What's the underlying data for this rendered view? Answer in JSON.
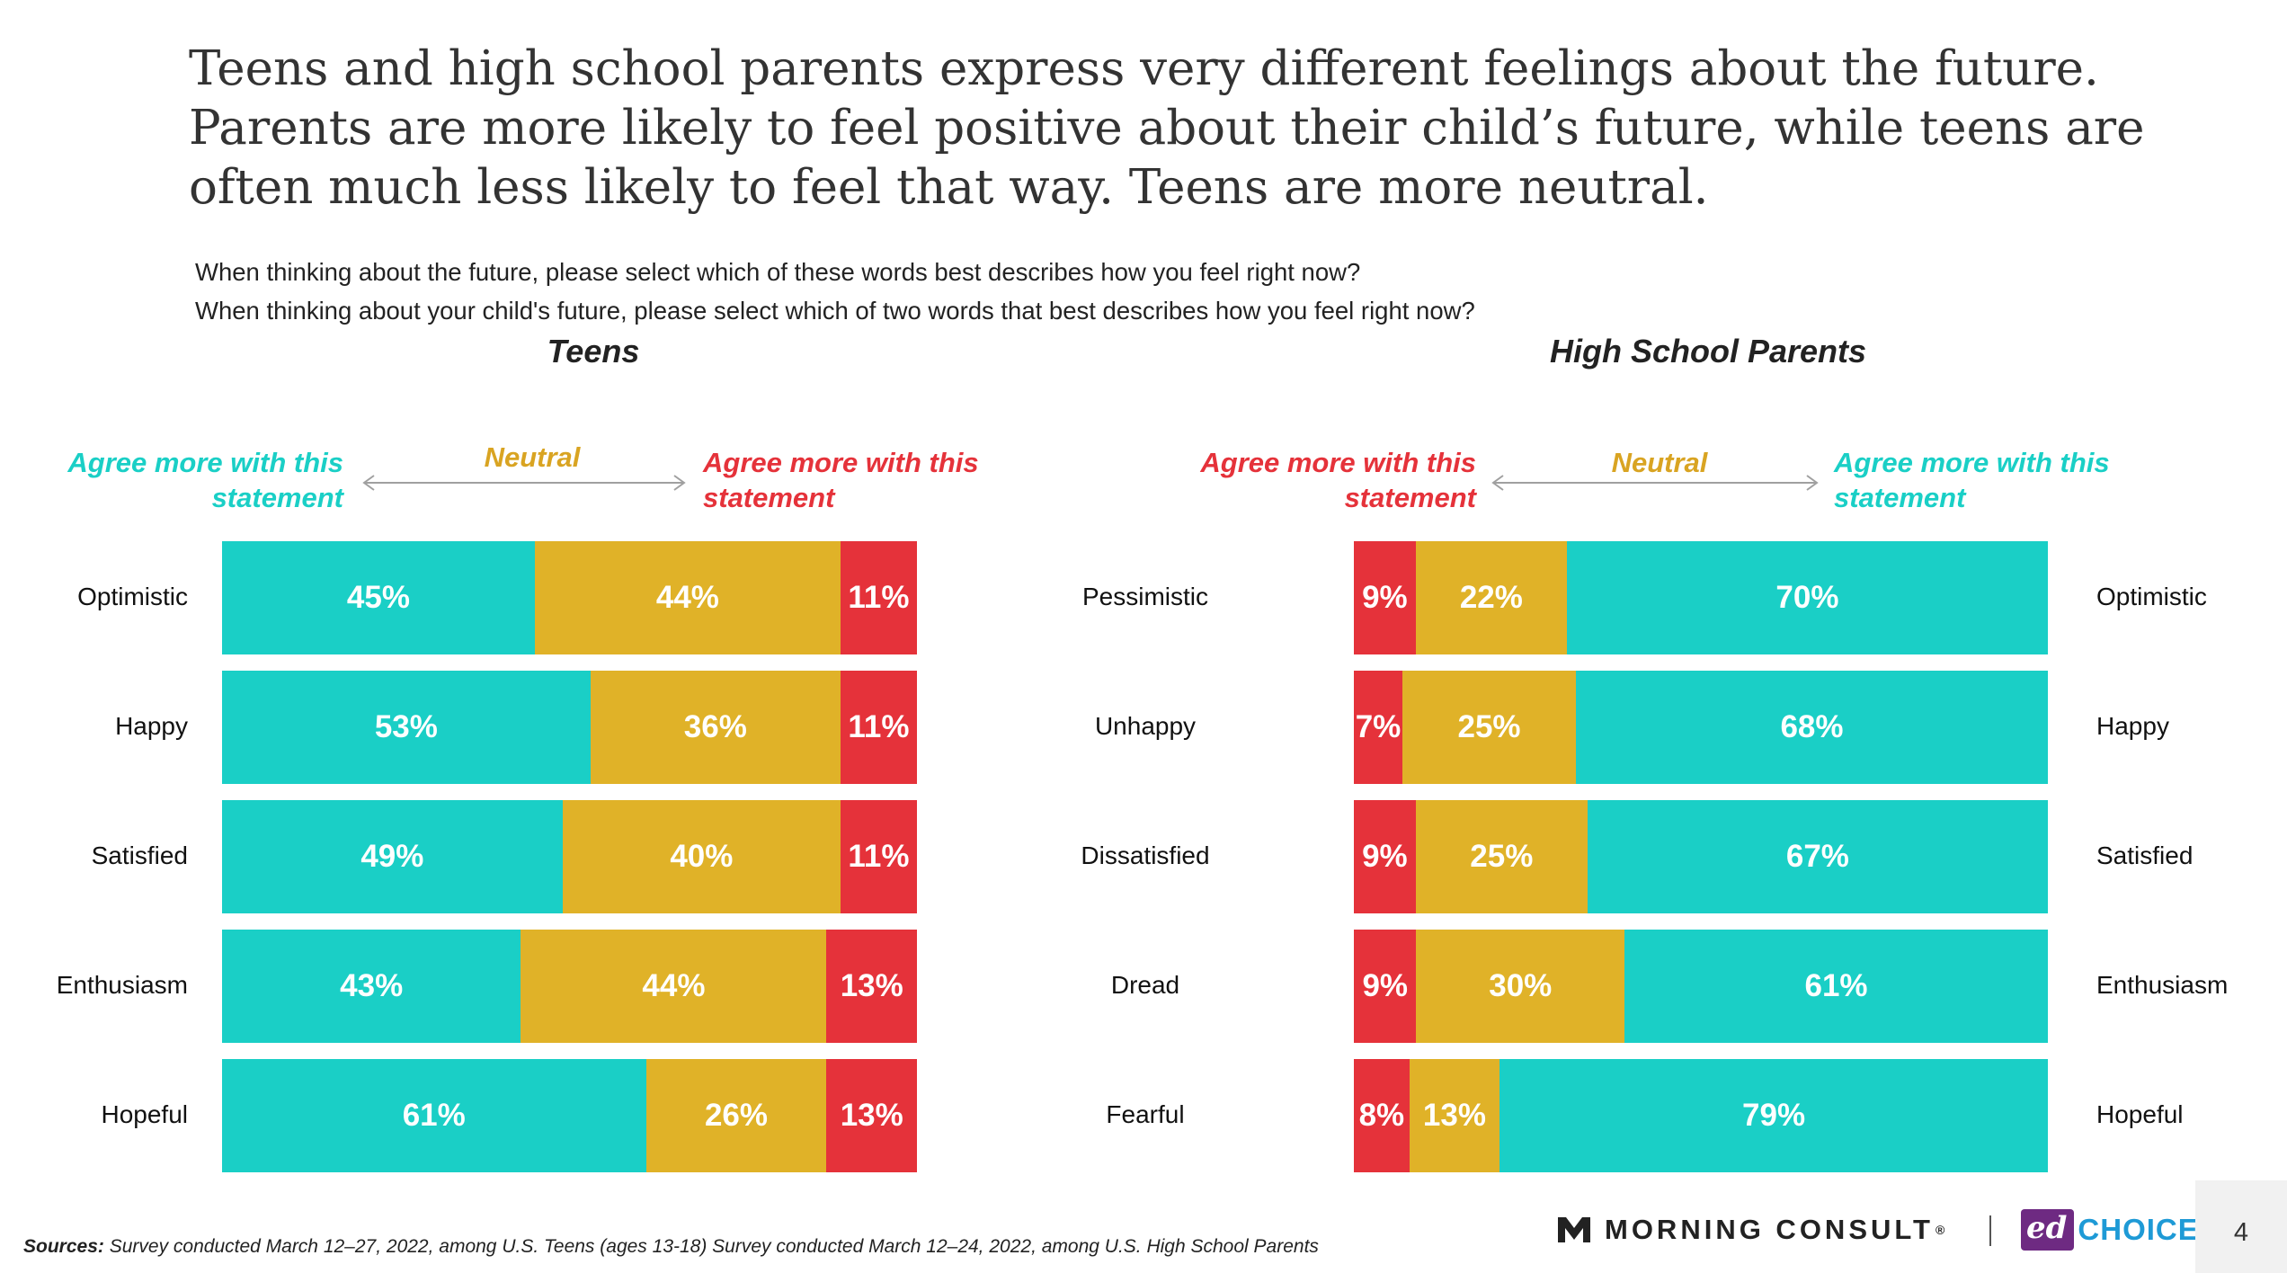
{
  "title": {
    "line1": "Teens and high school parents express very different feelings about the future.",
    "line2": "Parents are more likely to feel positive about their child’s future, while teens are",
    "line3": "often much less likely to feel that way. Teens are more neutral."
  },
  "questions": {
    "q1": "When thinking about the future, please select which of these words best describes how you feel right now?",
    "q2": "When thinking about your child's future, please select which of two words that best describes how you feel right now?"
  },
  "colors": {
    "teal": "#1ACFC6",
    "gold": "#E0B228",
    "red": "#E5323A"
  },
  "teens": {
    "panel_title": "Teens",
    "header_left_line1": "Agree more with this",
    "header_left_line2": "statement",
    "header_neutral": "Neutral",
    "header_right_line1": "Agree more with this",
    "header_right_line2": "statement"
  },
  "parents": {
    "panel_title": "High School Parents",
    "header_left_line1": "Agree more with this",
    "header_left_line2": "statement",
    "header_neutral": "Neutral",
    "header_right_line1": "Agree more with this",
    "header_right_line2": "statement"
  },
  "chart_data": [
    {
      "type": "bar",
      "stacked": true,
      "orientation": "horizontal",
      "title": "Teens",
      "categories": [
        "Optimistic",
        "Happy",
        "Satisfied",
        "Enthusiasm",
        "Hopeful"
      ],
      "series": [
        {
          "color": "#1ACFC6",
          "values": [
            45,
            53,
            49,
            43,
            61
          ],
          "labels": [
            "45%",
            "53%",
            "49%",
            "43%",
            "61%"
          ]
        },
        {
          "name": "Neutral",
          "color": "#E0B228",
          "values": [
            44,
            36,
            40,
            44,
            26
          ],
          "labels": [
            "44%",
            "36%",
            "40%",
            "44%",
            "26%"
          ]
        },
        {
          "color": "#E5323A",
          "values": [
            11,
            11,
            11,
            13,
            13
          ],
          "labels": [
            "11%",
            "11%",
            "11%",
            "13%",
            "13%"
          ]
        }
      ]
    },
    {
      "type": "bar",
      "stacked": true,
      "orientation": "horizontal",
      "title": "High School Parents",
      "categories_left": [
        "Pessimistic",
        "Unhappy",
        "Dissatisfied",
        "Dread",
        "Fearful"
      ],
      "categories_right": [
        "Optimistic",
        "Happy",
        "Satisfied",
        "Enthusiasm",
        "Hopeful"
      ],
      "series": [
        {
          "color": "#E5323A",
          "values": [
            9,
            7,
            9,
            9,
            8
          ],
          "labels": [
            "9%",
            "7%",
            "9%",
            "9%",
            "8%"
          ]
        },
        {
          "name": "Neutral",
          "color": "#E0B228",
          "values": [
            22,
            25,
            25,
            30,
            13
          ],
          "labels": [
            "22%",
            "25%",
            "25%",
            "30%",
            "13%"
          ]
        },
        {
          "color": "#1ACFC6",
          "values": [
            70,
            68,
            67,
            61,
            79
          ],
          "labels": [
            "70%",
            "68%",
            "67%",
            "61%",
            "79%"
          ]
        }
      ]
    }
  ],
  "footer": {
    "sources_label": "Sources:",
    "sources_text": " Survey conducted March 12–27, 2022, among U.S. Teens (ages 13-18) Survey conducted March 12–24, 2022, among U.S. High School Parents",
    "logo_morning_consult": "MORNING CONSULT",
    "logo_registered": "®",
    "logo_ed": "ed",
    "logo_choice": "CHOICE",
    "page_number": "4"
  }
}
